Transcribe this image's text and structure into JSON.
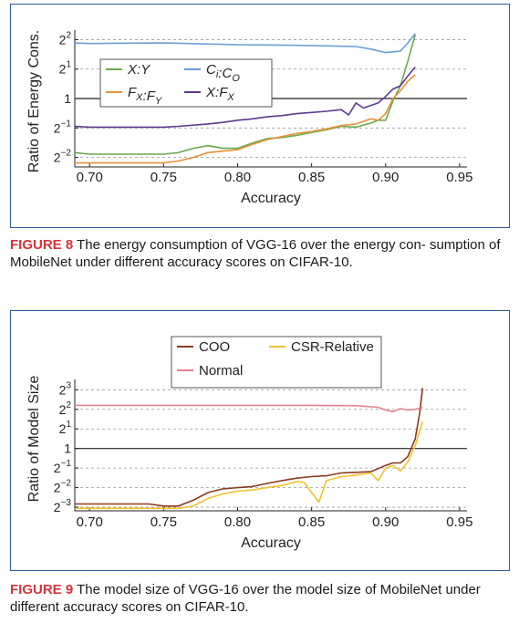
{
  "figures": [
    {
      "label": "FIGURE 8",
      "caption": "The energy consumption of VGG-16 over the energy con- sumption of MobileNet under different accuracy scores on CIFAR-10."
    },
    {
      "label": "FIGURE 9",
      "caption": "The model size of VGG-16 over the model size of MobileNet under different accuracy scores on CIFAR-10."
    }
  ],
  "chart_data": [
    {
      "type": "line",
      "xlabel": "Accuracy",
      "ylabel": "Ratio of Energy Cons.",
      "x_ticks": [
        "0.70",
        "0.75",
        "0.80",
        "0.85",
        "0.90",
        "0.95"
      ],
      "x_tick_values": [
        0.7,
        0.75,
        0.8,
        0.85,
        0.9,
        0.95
      ],
      "xlim": [
        0.69,
        0.955
      ],
      "y_scale": "log2",
      "ylim": [
        0.2,
        4.4
      ],
      "y_ticks": [
        {
          "value": 0.25,
          "base": "2",
          "exp": "−2"
        },
        {
          "value": 0.5,
          "base": "2",
          "exp": "−1"
        },
        {
          "value": 1,
          "base": "1",
          "exp": ""
        },
        {
          "value": 2,
          "base": "2",
          "exp": "1"
        },
        {
          "value": 4,
          "base": "2",
          "exp": "2"
        }
      ],
      "grid": "horizontal dashed",
      "reference_line": 1,
      "legend_position": "top-left",
      "series": [
        {
          "name": "X:Y",
          "name_style": "italic",
          "color": "#6aa84f",
          "x": [
            0.69,
            0.7,
            0.72,
            0.74,
            0.75,
            0.76,
            0.77,
            0.78,
            0.79,
            0.8,
            0.81,
            0.82,
            0.83,
            0.84,
            0.85,
            0.86,
            0.87,
            0.88,
            0.89,
            0.895,
            0.9,
            0.905,
            0.91,
            0.915,
            0.92
          ],
          "y": [
            0.28,
            0.27,
            0.27,
            0.27,
            0.27,
            0.28,
            0.31,
            0.33,
            0.31,
            0.31,
            0.35,
            0.39,
            0.4,
            0.42,
            0.45,
            0.48,
            0.52,
            0.51,
            0.56,
            0.6,
            0.6,
            0.95,
            1.35,
            2.4,
            4.5
          ]
        },
        {
          "name": "Ci:CO",
          "name_style": "italic",
          "color": "#6a9fd8",
          "x": [
            0.69,
            0.7,
            0.75,
            0.8,
            0.84,
            0.86,
            0.88,
            0.89,
            0.9,
            0.905,
            0.91,
            0.915,
            0.92
          ],
          "y": [
            3.7,
            3.65,
            3.7,
            3.55,
            3.5,
            3.45,
            3.4,
            3.2,
            2.95,
            3.0,
            3.05,
            3.7,
            4.6
          ]
        },
        {
          "name": "FX:FY",
          "name_style": "italic",
          "color": "#e69138",
          "x": [
            0.69,
            0.7,
            0.72,
            0.74,
            0.75,
            0.76,
            0.77,
            0.78,
            0.79,
            0.8,
            0.81,
            0.82,
            0.83,
            0.84,
            0.85,
            0.86,
            0.87,
            0.88,
            0.89,
            0.895,
            0.9,
            0.905,
            0.91,
            0.915,
            0.92
          ],
          "y": [
            0.22,
            0.22,
            0.22,
            0.22,
            0.22,
            0.23,
            0.25,
            0.28,
            0.29,
            0.3,
            0.34,
            0.38,
            0.41,
            0.44,
            0.46,
            0.49,
            0.53,
            0.55,
            0.62,
            0.6,
            0.7,
            1.0,
            1.2,
            1.5,
            1.75
          ]
        },
        {
          "name": "X:FX",
          "name_style": "italic",
          "color": "#5b3a8e",
          "x": [
            0.69,
            0.7,
            0.72,
            0.74,
            0.75,
            0.76,
            0.78,
            0.79,
            0.8,
            0.81,
            0.82,
            0.83,
            0.84,
            0.85,
            0.86,
            0.87,
            0.875,
            0.88,
            0.885,
            0.89,
            0.895,
            0.9,
            0.905,
            0.91,
            0.915,
            0.92
          ],
          "y": [
            0.52,
            0.51,
            0.51,
            0.51,
            0.51,
            0.52,
            0.55,
            0.57,
            0.6,
            0.62,
            0.65,
            0.67,
            0.7,
            0.72,
            0.74,
            0.77,
            0.68,
            0.9,
            0.8,
            0.85,
            0.9,
            1.05,
            1.25,
            1.35,
            1.7,
            2.1
          ]
        }
      ]
    },
    {
      "type": "line",
      "xlabel": "Accuracy",
      "ylabel": "Ratio of Model Size",
      "x_ticks": [
        "0.70",
        "0.75",
        "0.80",
        "0.85",
        "0.90",
        "0.95"
      ],
      "x_tick_values": [
        0.7,
        0.75,
        0.8,
        0.85,
        0.9,
        0.95
      ],
      "xlim": [
        0.69,
        0.955
      ],
      "y_scale": "log2",
      "ylim": [
        0.11,
        9.5
      ],
      "y_ticks": [
        {
          "value": 0.125,
          "base": "2",
          "exp": "−3"
        },
        {
          "value": 0.25,
          "base": "2",
          "exp": "−2"
        },
        {
          "value": 0.5,
          "base": "2",
          "exp": "−1"
        },
        {
          "value": 1,
          "base": "1",
          "exp": ""
        },
        {
          "value": 2,
          "base": "2",
          "exp": "1"
        },
        {
          "value": 4,
          "base": "2",
          "exp": "2"
        },
        {
          "value": 8,
          "base": "2",
          "exp": "3"
        }
      ],
      "grid": "horizontal dashed",
      "reference_line": 1,
      "legend_position": "top-center",
      "series": [
        {
          "name": "COO",
          "color": "#8b3a1e",
          "x": [
            0.69,
            0.7,
            0.72,
            0.74,
            0.75,
            0.76,
            0.77,
            0.78,
            0.79,
            0.8,
            0.81,
            0.82,
            0.83,
            0.84,
            0.85,
            0.86,
            0.87,
            0.88,
            0.89,
            0.9,
            0.905,
            0.91,
            0.915,
            0.92,
            0.923,
            0.925
          ],
          "y": [
            0.14,
            0.14,
            0.14,
            0.14,
            0.13,
            0.13,
            0.16,
            0.21,
            0.24,
            0.25,
            0.26,
            0.29,
            0.32,
            0.35,
            0.37,
            0.38,
            0.42,
            0.43,
            0.44,
            0.55,
            0.6,
            0.6,
            0.75,
            1.4,
            3.5,
            8.5
          ]
        },
        {
          "name": "CSR-Relative",
          "color": "#f1c232",
          "x": [
            0.69,
            0.7,
            0.72,
            0.74,
            0.75,
            0.76,
            0.77,
            0.78,
            0.79,
            0.8,
            0.81,
            0.82,
            0.83,
            0.84,
            0.845,
            0.85,
            0.855,
            0.86,
            0.87,
            0.88,
            0.89,
            0.895,
            0.9,
            0.905,
            0.91,
            0.915,
            0.92,
            0.925
          ],
          "y": [
            0.12,
            0.12,
            0.12,
            0.12,
            0.12,
            0.12,
            0.13,
            0.17,
            0.2,
            0.22,
            0.23,
            0.25,
            0.27,
            0.31,
            0.3,
            0.21,
            0.15,
            0.32,
            0.37,
            0.39,
            0.42,
            0.32,
            0.5,
            0.55,
            0.45,
            0.62,
            1.1,
            2.6
          ]
        },
        {
          "name": "Normal",
          "color": "#e6838a",
          "x": [
            0.69,
            0.7,
            0.75,
            0.8,
            0.85,
            0.88,
            0.895,
            0.9,
            0.905,
            0.91,
            0.915,
            0.92,
            0.925
          ],
          "y": [
            4.6,
            4.6,
            4.6,
            4.6,
            4.6,
            4.55,
            4.3,
            3.9,
            3.7,
            4.1,
            3.9,
            4.0,
            4.3
          ]
        }
      ]
    }
  ]
}
